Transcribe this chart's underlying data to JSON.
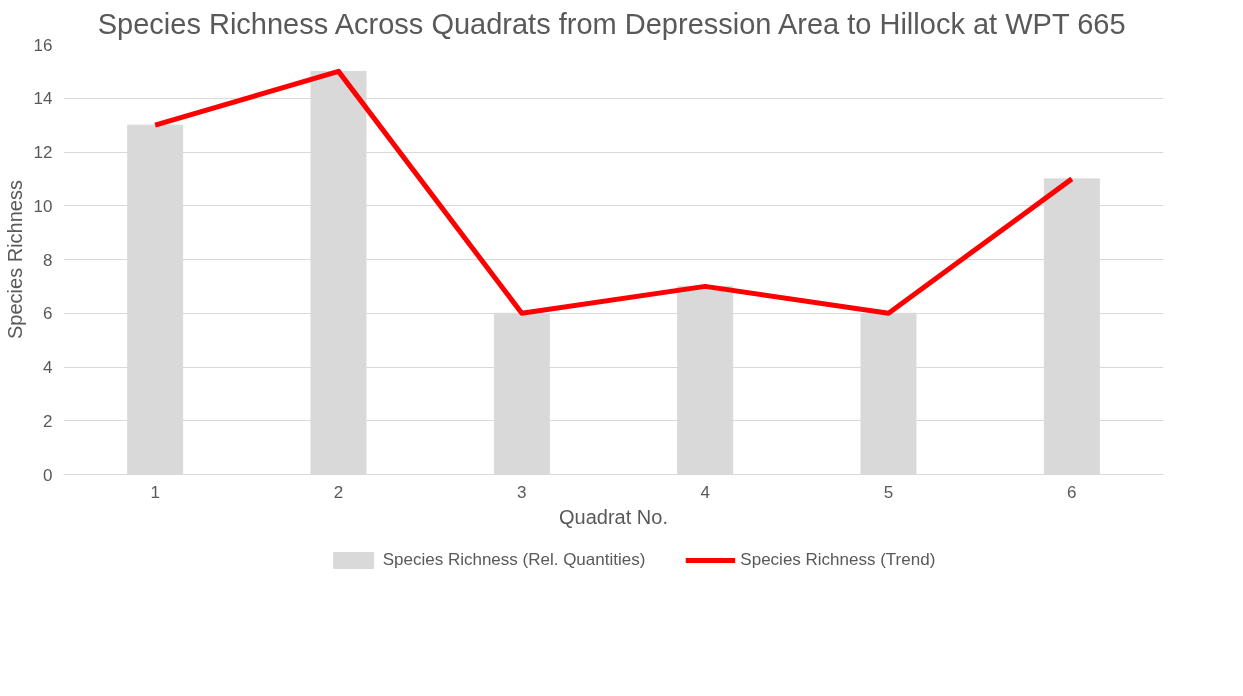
{
  "chart_data": {
    "type": "bar",
    "title": "Species Richness Across Quadrats from Depression Area to Hillock at WPT 665",
    "xlabel": "Quadrat No.",
    "ylabel": "Species Richness",
    "categories": [
      "1",
      "2",
      "3",
      "4",
      "5",
      "6"
    ],
    "series": [
      {
        "name": "Species Richness (Rel. Quantities)",
        "type": "bar",
        "color": "#d9d9d9",
        "values": [
          13,
          15,
          6,
          7,
          6,
          11
        ]
      },
      {
        "name": "Species Richness (Trend)",
        "type": "line",
        "color": "#ff0000",
        "values": [
          13,
          15,
          6,
          7,
          6,
          11
        ]
      }
    ],
    "ylim": [
      0,
      16
    ],
    "yticks": [
      0,
      2,
      4,
      6,
      8,
      10,
      12,
      14,
      16
    ],
    "grid": "y",
    "legend": "bottom",
    "marker": "none",
    "line_style": "solid"
  }
}
